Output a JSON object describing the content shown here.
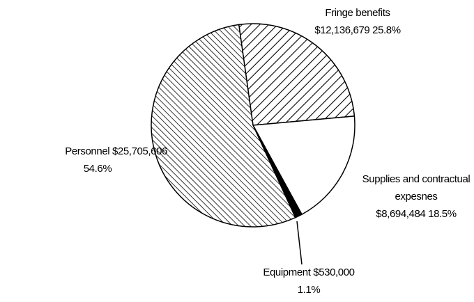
{
  "chart_data": {
    "type": "pie",
    "categories": [
      "Fringe benefits",
      "Supplies and contractual expesnes",
      "Equipment",
      "Personnel"
    ],
    "values": [
      12136679,
      8694484,
      530000,
      25705606
    ],
    "value_labels": [
      "$12,136,679",
      "$8,694,484",
      "$530,000",
      "$25,705,606"
    ],
    "percentages": [
      25.8,
      18.5,
      1.1,
      54.6
    ],
    "percentage_labels": [
      "25.8%",
      "18.5%",
      "1.1%",
      "54.6%"
    ]
  }
}
